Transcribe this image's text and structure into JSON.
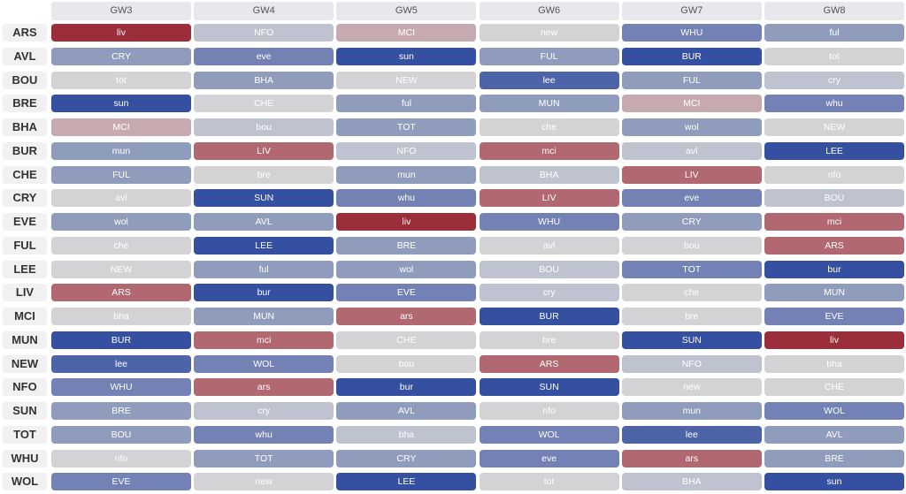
{
  "gameweeks": [
    "GW3",
    "GW4",
    "GW5",
    "GW6",
    "GW7",
    "GW8"
  ],
  "difficulty_colors": {
    "very_hard": "#9b2e3a",
    "hard": "#b26870",
    "somewhat_hard": "#c7aab0",
    "neutral": "#d3d3d5",
    "light_easy": "#bfc3d0",
    "easy": "#8f9cbc",
    "easier": "#7381b5",
    "very_easy": "#4e64a9",
    "easiest": "#3550a0"
  },
  "rows": [
    {
      "team": "ARS",
      "fixtures": [
        {
          "label": "liv",
          "difficulty": "very_hard"
        },
        {
          "label": "NFO",
          "difficulty": "light_easy"
        },
        {
          "label": "MCI",
          "difficulty": "somewhat_hard"
        },
        {
          "label": "new",
          "difficulty": "neutral"
        },
        {
          "label": "WHU",
          "difficulty": "easier"
        },
        {
          "label": "ful",
          "difficulty": "easy"
        }
      ]
    },
    {
      "team": "AVL",
      "fixtures": [
        {
          "label": "CRY",
          "difficulty": "easy"
        },
        {
          "label": "eve",
          "difficulty": "easier"
        },
        {
          "label": "sun",
          "difficulty": "easiest"
        },
        {
          "label": "FUL",
          "difficulty": "easy"
        },
        {
          "label": "BUR",
          "difficulty": "easiest"
        },
        {
          "label": "tot",
          "difficulty": "neutral"
        }
      ]
    },
    {
      "team": "BOU",
      "fixtures": [
        {
          "label": "tot",
          "difficulty": "neutral"
        },
        {
          "label": "BHA",
          "difficulty": "easy"
        },
        {
          "label": "NEW",
          "difficulty": "neutral"
        },
        {
          "label": "lee",
          "difficulty": "very_easy"
        },
        {
          "label": "FUL",
          "difficulty": "easy"
        },
        {
          "label": "cry",
          "difficulty": "light_easy"
        }
      ]
    },
    {
      "team": "BRE",
      "fixtures": [
        {
          "label": "sun",
          "difficulty": "easiest"
        },
        {
          "label": "CHE",
          "difficulty": "neutral"
        },
        {
          "label": "ful",
          "difficulty": "easy"
        },
        {
          "label": "MUN",
          "difficulty": "easy"
        },
        {
          "label": "MCI",
          "difficulty": "somewhat_hard"
        },
        {
          "label": "whu",
          "difficulty": "easier"
        }
      ]
    },
    {
      "team": "BHA",
      "fixtures": [
        {
          "label": "MCI",
          "difficulty": "somewhat_hard"
        },
        {
          "label": "bou",
          "difficulty": "light_easy"
        },
        {
          "label": "TOT",
          "difficulty": "easy"
        },
        {
          "label": "che",
          "difficulty": "neutral"
        },
        {
          "label": "wol",
          "difficulty": "easy"
        },
        {
          "label": "NEW",
          "difficulty": "neutral"
        }
      ]
    },
    {
      "team": "BUR",
      "fixtures": [
        {
          "label": "mun",
          "difficulty": "easy"
        },
        {
          "label": "LIV",
          "difficulty": "hard"
        },
        {
          "label": "NFO",
          "difficulty": "light_easy"
        },
        {
          "label": "mci",
          "difficulty": "hard"
        },
        {
          "label": "avl",
          "difficulty": "light_easy"
        },
        {
          "label": "LEE",
          "difficulty": "easiest"
        }
      ]
    },
    {
      "team": "CHE",
      "fixtures": [
        {
          "label": "FUL",
          "difficulty": "easy"
        },
        {
          "label": "bre",
          "difficulty": "neutral"
        },
        {
          "label": "mun",
          "difficulty": "easy"
        },
        {
          "label": "BHA",
          "difficulty": "light_easy"
        },
        {
          "label": "LIV",
          "difficulty": "hard"
        },
        {
          "label": "nfo",
          "difficulty": "neutral"
        }
      ]
    },
    {
      "team": "CRY",
      "fixtures": [
        {
          "label": "avl",
          "difficulty": "neutral"
        },
        {
          "label": "SUN",
          "difficulty": "easiest"
        },
        {
          "label": "whu",
          "difficulty": "easier"
        },
        {
          "label": "LIV",
          "difficulty": "hard"
        },
        {
          "label": "eve",
          "difficulty": "easier"
        },
        {
          "label": "BOU",
          "difficulty": "light_easy"
        }
      ]
    },
    {
      "team": "EVE",
      "fixtures": [
        {
          "label": "wol",
          "difficulty": "easy"
        },
        {
          "label": "AVL",
          "difficulty": "easy"
        },
        {
          "label": "liv",
          "difficulty": "very_hard"
        },
        {
          "label": "WHU",
          "difficulty": "easier"
        },
        {
          "label": "CRY",
          "difficulty": "easy"
        },
        {
          "label": "mci",
          "difficulty": "hard"
        }
      ]
    },
    {
      "team": "FUL",
      "fixtures": [
        {
          "label": "che",
          "difficulty": "neutral"
        },
        {
          "label": "LEE",
          "difficulty": "easiest"
        },
        {
          "label": "BRE",
          "difficulty": "easy"
        },
        {
          "label": "avl",
          "difficulty": "neutral"
        },
        {
          "label": "bou",
          "difficulty": "neutral"
        },
        {
          "label": "ARS",
          "difficulty": "hard"
        }
      ]
    },
    {
      "team": "LEE",
      "fixtures": [
        {
          "label": "NEW",
          "difficulty": "neutral"
        },
        {
          "label": "ful",
          "difficulty": "easy"
        },
        {
          "label": "wol",
          "difficulty": "easy"
        },
        {
          "label": "BOU",
          "difficulty": "light_easy"
        },
        {
          "label": "TOT",
          "difficulty": "easier"
        },
        {
          "label": "bur",
          "difficulty": "easiest"
        }
      ]
    },
    {
      "team": "LIV",
      "fixtures": [
        {
          "label": "ARS",
          "difficulty": "hard"
        },
        {
          "label": "bur",
          "difficulty": "easiest"
        },
        {
          "label": "EVE",
          "difficulty": "easier"
        },
        {
          "label": "cry",
          "difficulty": "light_easy"
        },
        {
          "label": "che",
          "difficulty": "neutral"
        },
        {
          "label": "MUN",
          "difficulty": "easy"
        }
      ]
    },
    {
      "team": "MCI",
      "fixtures": [
        {
          "label": "bha",
          "difficulty": "neutral"
        },
        {
          "label": "MUN",
          "difficulty": "easy"
        },
        {
          "label": "ars",
          "difficulty": "hard"
        },
        {
          "label": "BUR",
          "difficulty": "easiest"
        },
        {
          "label": "bre",
          "difficulty": "neutral"
        },
        {
          "label": "EVE",
          "difficulty": "easier"
        }
      ]
    },
    {
      "team": "MUN",
      "fixtures": [
        {
          "label": "BUR",
          "difficulty": "easiest"
        },
        {
          "label": "mci",
          "difficulty": "hard"
        },
        {
          "label": "CHE",
          "difficulty": "neutral"
        },
        {
          "label": "bre",
          "difficulty": "neutral"
        },
        {
          "label": "SUN",
          "difficulty": "easiest"
        },
        {
          "label": "liv",
          "difficulty": "very_hard"
        }
      ]
    },
    {
      "team": "NEW",
      "fixtures": [
        {
          "label": "lee",
          "difficulty": "very_easy"
        },
        {
          "label": "WOL",
          "difficulty": "easier"
        },
        {
          "label": "bou",
          "difficulty": "neutral"
        },
        {
          "label": "ARS",
          "difficulty": "hard"
        },
        {
          "label": "NFO",
          "difficulty": "light_easy"
        },
        {
          "label": "bha",
          "difficulty": "neutral"
        }
      ]
    },
    {
      "team": "NFO",
      "fixtures": [
        {
          "label": "WHU",
          "difficulty": "easier"
        },
        {
          "label": "ars",
          "difficulty": "hard"
        },
        {
          "label": "bur",
          "difficulty": "easiest"
        },
        {
          "label": "SUN",
          "difficulty": "easiest"
        },
        {
          "label": "new",
          "difficulty": "neutral"
        },
        {
          "label": "CHE",
          "difficulty": "neutral"
        }
      ]
    },
    {
      "team": "SUN",
      "fixtures": [
        {
          "label": "BRE",
          "difficulty": "easy"
        },
        {
          "label": "cry",
          "difficulty": "light_easy"
        },
        {
          "label": "AVL",
          "difficulty": "easy"
        },
        {
          "label": "nfo",
          "difficulty": "neutral"
        },
        {
          "label": "mun",
          "difficulty": "easy"
        },
        {
          "label": "WOL",
          "difficulty": "easier"
        }
      ]
    },
    {
      "team": "TOT",
      "fixtures": [
        {
          "label": "BOU",
          "difficulty": "easy"
        },
        {
          "label": "whu",
          "difficulty": "easier"
        },
        {
          "label": "bha",
          "difficulty": "light_easy"
        },
        {
          "label": "WOL",
          "difficulty": "easier"
        },
        {
          "label": "lee",
          "difficulty": "very_easy"
        },
        {
          "label": "AVL",
          "difficulty": "easy"
        }
      ]
    },
    {
      "team": "WHU",
      "fixtures": [
        {
          "label": "nfo",
          "difficulty": "neutral"
        },
        {
          "label": "TOT",
          "difficulty": "easy"
        },
        {
          "label": "CRY",
          "difficulty": "easy"
        },
        {
          "label": "eve",
          "difficulty": "easier"
        },
        {
          "label": "ars",
          "difficulty": "hard"
        },
        {
          "label": "BRE",
          "difficulty": "easy"
        }
      ]
    },
    {
      "team": "WOL",
      "fixtures": [
        {
          "label": "EVE",
          "difficulty": "easier"
        },
        {
          "label": "new",
          "difficulty": "neutral"
        },
        {
          "label": "LEE",
          "difficulty": "easiest"
        },
        {
          "label": "tot",
          "difficulty": "neutral"
        },
        {
          "label": "BHA",
          "difficulty": "light_easy"
        },
        {
          "label": "sun",
          "difficulty": "easiest"
        }
      ]
    }
  ]
}
